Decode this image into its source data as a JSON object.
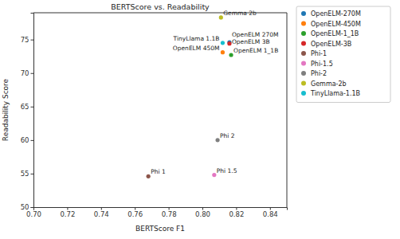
{
  "chart_data": {
    "type": "scatter",
    "title": "BERTScore vs. Readability",
    "x_label": "BERTScore F1",
    "y_label": "Readability Score",
    "xlim": [
      0.7,
      0.85
    ],
    "xticks": [
      {
        "value": 0.7,
        "label": "0.70"
      },
      0.72,
      0.74,
      0.76,
      0.78,
      {
        "value": 0.8,
        "label": "0.80"
      },
      0.82,
      0.84
    ],
    "ylim": [
      50,
      79
    ],
    "yticks": [
      50,
      55,
      60,
      65,
      70,
      75
    ],
    "grid": false,
    "legend": "right",
    "marker": "circle",
    "series": [
      {
        "name": "OpenELM-270M",
        "label": "OpenELM 270M",
        "color": "#1f77b4",
        "x": [
          0.816
        ],
        "values": [
          74.6
        ]
      },
      {
        "name": "OpenELM-450M",
        "label": "OpenELM 450M",
        "color": "#ff7f0e",
        "x": [
          0.812
        ],
        "values": [
          73.1
        ]
      },
      {
        "name": "OpenELM-1_1B",
        "label": "OpenELM 1_1B",
        "color": "#2ca02c",
        "x": [
          0.817
        ],
        "values": [
          72.7
        ]
      },
      {
        "name": "OpenELM-3B",
        "label": "OpenELM 3B",
        "color": "#d62728",
        "x": [
          0.816
        ],
        "values": [
          74.4
        ]
      },
      {
        "name": "Phi-1",
        "label": "Phi 1",
        "color": "#8c564b",
        "x": [
          0.768
        ],
        "values": [
          54.6
        ]
      },
      {
        "name": "Phi-1.5",
        "label": "Phi 1.5",
        "color": "#e377c2",
        "x": [
          0.807
        ],
        "values": [
          54.8
        ]
      },
      {
        "name": "Phi-2",
        "label": "Phi 2",
        "color": "#7f7f7f",
        "x": [
          0.809
        ],
        "values": [
          60.0
        ]
      },
      {
        "name": "Gemma-2b",
        "label": "Gemma 2b",
        "color": "#bcbd22",
        "x": [
          0.811
        ],
        "values": [
          78.3
        ]
      },
      {
        "name": "TinyLlama-1.1B",
        "label": "TinyLlama 1.1B",
        "color": "#17becf",
        "x": [
          0.812
        ],
        "values": [
          74.5
        ]
      }
    ]
  }
}
